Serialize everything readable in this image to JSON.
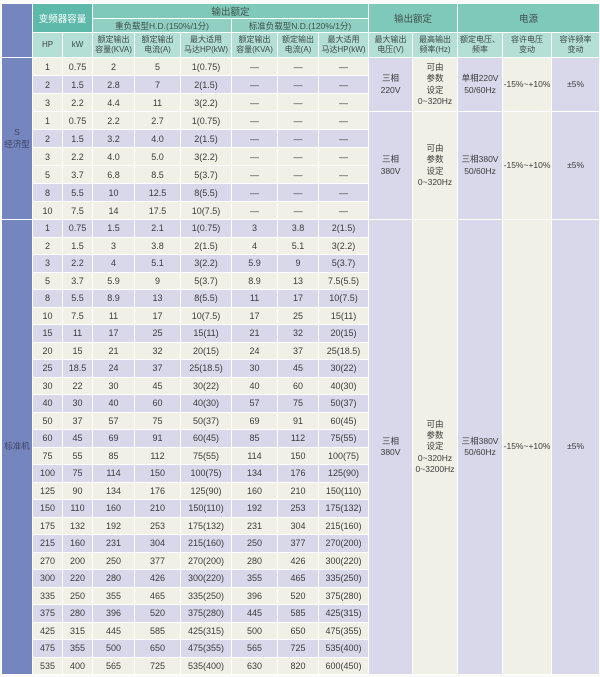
{
  "header": {
    "capacity": "变频器容量",
    "output_rating_main": "输出额定",
    "hd_label": "重负载型H.D.(150%/1分)",
    "nd_label": "标准负载型N.D.(120%/1分)",
    "output_rating_right": "输出额定",
    "power": "电源",
    "cols": {
      "hp": "HP",
      "kw": "kW",
      "kva": [
        "额定输出",
        "容量(KVA)"
      ],
      "amp": [
        "额定输出",
        "电流(A)"
      ],
      "motor": [
        "最大适用",
        "马达HP(kW)"
      ],
      "max_v": [
        "最大输出",
        "电压(V)"
      ],
      "max_f": [
        "最高输出",
        "频率(Hz)"
      ],
      "rated_vf": [
        "额定电压、",
        "频率"
      ],
      "v_tol": [
        "容许电压",
        "变动"
      ],
      "f_tol": [
        "容许频率",
        "变动"
      ]
    }
  },
  "sections": [
    {
      "id": "economy",
      "label_lines": [
        "S",
        "经济型"
      ],
      "row_shades": [
        "a",
        "b",
        "a",
        "a",
        "b",
        "a",
        "a",
        "b",
        "a"
      ],
      "rows": [
        [
          "1",
          "0.75",
          "2",
          "5",
          "1(0.75)",
          "—",
          "—",
          "—"
        ],
        [
          "2",
          "1.5",
          "2.8",
          "7",
          "2(1.5)",
          "—",
          "—",
          "—"
        ],
        [
          "3",
          "2.2",
          "4.4",
          "11",
          "3(2.2)",
          "—",
          "—",
          "—"
        ],
        [
          "1",
          "0.75",
          "2.2",
          "2.7",
          "1(0.75)",
          "—",
          "—",
          "—"
        ],
        [
          "2",
          "1.5",
          "3.2",
          "4.0",
          "2(1.5)",
          "—",
          "—",
          "—"
        ],
        [
          "3",
          "2.2",
          "4.0",
          "5.0",
          "3(2.2)",
          "—",
          "—",
          "—"
        ],
        [
          "5",
          "3.7",
          "6.8",
          "8.5",
          "5(3.7)",
          "—",
          "—",
          "—"
        ],
        [
          "8",
          "5.5",
          "10",
          "12.5",
          "8(5.5)",
          "—",
          "—",
          "—"
        ],
        [
          "10",
          "7.5",
          "14",
          "17.5",
          "10(7.5)",
          "—",
          "—",
          "—"
        ]
      ],
      "groups": [
        {
          "span": 3,
          "voltage": [
            "三相",
            "220V"
          ],
          "freq": [
            "可由",
            "参数",
            "设定",
            "0~320Hz"
          ],
          "supply": [
            "单相220V",
            "50/60Hz"
          ],
          "v_tol": "-15%~+10%",
          "f_tol": "±5%"
        },
        {
          "span": 6,
          "voltage": [
            "三相",
            "380V"
          ],
          "freq": [
            "可由",
            "参数",
            "设定",
            "0~320Hz"
          ],
          "supply": [
            "三相380V",
            "50/60Hz"
          ],
          "v_tol": "-15%~+10%",
          "f_tol": "±5%"
        }
      ]
    },
    {
      "id": "standard",
      "label_lines": [
        "标准机"
      ],
      "row_shades": [
        "b",
        "a",
        "b",
        "a",
        "b",
        "a",
        "b",
        "a",
        "b",
        "a",
        "b",
        "a",
        "b",
        "a",
        "b",
        "a",
        "b",
        "a",
        "b",
        "a",
        "b",
        "a",
        "b",
        "a",
        "b",
        "a"
      ],
      "rows": [
        [
          "1",
          "0.75",
          "1.5",
          "2.1",
          "1(0.75)",
          "3",
          "3.8",
          "2(1.5)"
        ],
        [
          "2",
          "1.5",
          "3",
          "3.8",
          "2(1.5)",
          "4",
          "5.1",
          "3(2.2)"
        ],
        [
          "3",
          "2.2",
          "4",
          "5.1",
          "3(2.2)",
          "5.9",
          "9",
          "5(3.7)"
        ],
        [
          "5",
          "3.7",
          "5.9",
          "9",
          "5(3.7)",
          "8.9",
          "13",
          "7.5(5.5)"
        ],
        [
          "8",
          "5.5",
          "8.9",
          "13",
          "8(5.5)",
          "11",
          "17",
          "10(7.5)"
        ],
        [
          "10",
          "7.5",
          "11",
          "17",
          "10(7.5)",
          "17",
          "25",
          "15(11)"
        ],
        [
          "15",
          "11",
          "17",
          "25",
          "15(11)",
          "21",
          "32",
          "20(15)"
        ],
        [
          "20",
          "15",
          "21",
          "32",
          "20(15)",
          "24",
          "37",
          "25(18.5)"
        ],
        [
          "25",
          "18.5",
          "24",
          "37",
          "25(18.5)",
          "30",
          "45",
          "30(22)"
        ],
        [
          "30",
          "22",
          "30",
          "45",
          "30(22)",
          "40",
          "60",
          "40(30)"
        ],
        [
          "40",
          "30",
          "40",
          "60",
          "40(30)",
          "57",
          "75",
          "50(37)"
        ],
        [
          "50",
          "37",
          "57",
          "75",
          "50(37)",
          "69",
          "91",
          "60(45)"
        ],
        [
          "60",
          "45",
          "69",
          "91",
          "60(45)",
          "85",
          "112",
          "75(55)"
        ],
        [
          "75",
          "55",
          "85",
          "112",
          "75(55)",
          "114",
          "150",
          "100(75)"
        ],
        [
          "100",
          "75",
          "114",
          "150",
          "100(75)",
          "134",
          "176",
          "125(90)"
        ],
        [
          "125",
          "90",
          "134",
          "176",
          "125(90)",
          "160",
          "210",
          "150(110)"
        ],
        [
          "150",
          "110",
          "160",
          "210",
          "150(110)",
          "192",
          "253",
          "175(132)"
        ],
        [
          "175",
          "132",
          "192",
          "253",
          "175(132)",
          "231",
          "304",
          "215(160)"
        ],
        [
          "215",
          "160",
          "231",
          "304",
          "215(160)",
          "250",
          "377",
          "270(200)"
        ],
        [
          "270",
          "200",
          "250",
          "377",
          "270(200)",
          "280",
          "426",
          "300(220)"
        ],
        [
          "300",
          "220",
          "280",
          "426",
          "300(220)",
          "355",
          "465",
          "335(250)"
        ],
        [
          "335",
          "250",
          "355",
          "465",
          "335(250)",
          "396",
          "520",
          "375(280)"
        ],
        [
          "375",
          "280",
          "396",
          "520",
          "375(280)",
          "445",
          "585",
          "425(315)"
        ],
        [
          "425",
          "315",
          "445",
          "585",
          "425(315)",
          "500",
          "650",
          "475(355)"
        ],
        [
          "475",
          "355",
          "500",
          "650",
          "475(355)",
          "565",
          "725",
          "535(400)"
        ],
        [
          "535",
          "400",
          "565",
          "725",
          "535(400)",
          "630",
          "820",
          "600(450)"
        ]
      ],
      "groups": [
        {
          "span": 26,
          "voltage": [
            "三相",
            "380V"
          ],
          "freq": [
            "可由",
            "参数",
            "设定",
            "0~320Hz",
            "0~3200Hz"
          ],
          "supply": [
            "三相380V",
            "50/60Hz"
          ],
          "v_tol": "-15%~+10%",
          "f_tol": "±5%"
        }
      ]
    }
  ],
  "colors": {
    "header_band": "#7fc9ba",
    "header_sub_band": "#8fd0c2",
    "header_capacity": "#5eb9aa",
    "header_columns": "#b4dfd6",
    "section_label_blue": "#7585bd",
    "row_cream": "#f1f0e6",
    "row_lavender": "#d9d8eb"
  }
}
